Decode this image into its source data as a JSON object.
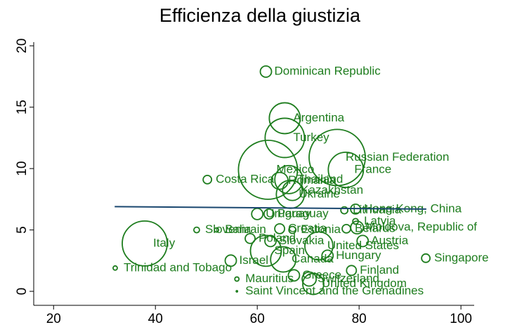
{
  "chart_data": {
    "type": "scatter",
    "title": "Efficienza della giustizia",
    "labels": [
      "Dominican Republic",
      "Argentina",
      "Turkey",
      "Russian Federation",
      "France",
      "Mexico",
      "Costa Rica",
      "Romania",
      "Thailand",
      "Kazakhstan",
      "Ukraine",
      "Hong Kong, China",
      "Lithuania",
      "Uruguay",
      "Paraguay",
      "Latvia",
      "Moldova, Republic of",
      "Belarus",
      "Slovenia",
      "Bahrain",
      "Croatia",
      "Estonia",
      "Italy",
      "Poland",
      "Slovakia",
      "Austria",
      "United States",
      "Singapore",
      "Spain",
      "Hungary",
      "Israel",
      "Canada",
      "Trinidad and Tobago",
      "Finland",
      "Mauritius",
      "Switzerland",
      "Greece",
      "United Kingdom",
      "Saint Vincent and the Grenadines"
    ],
    "x": [
      61.7,
      65.4,
      65.4,
      75.7,
      77.4,
      62.1,
      50.2,
      64.4,
      66.2,
      66.9,
      66.5,
      79.3,
      77.1,
      60.0,
      62.3,
      79.3,
      79.6,
      77.5,
      48.1,
      52.0,
      64.4,
      66.9,
      37.9,
      58.6,
      62.6,
      80.7,
      72.1,
      93.1,
      61.7,
      73.8,
      54.8,
      65.1,
      32.1,
      78.5,
      56.0,
      70.2,
      67.2,
      71.0,
      56.0
    ],
    "values": [
      17.9,
      14.1,
      12.5,
      10.9,
      9.9,
      9.9,
      9.1,
      9.0,
      9.1,
      8.2,
      7.9,
      6.7,
      6.6,
      6.3,
      6.3,
      5.7,
      5.2,
      5.1,
      5.0,
      5.0,
      5.1,
      5.0,
      3.9,
      4.3,
      4.1,
      4.1,
      3.7,
      2.7,
      3.3,
      2.9,
      2.5,
      2.6,
      1.9,
      1.7,
      1.0,
      1.0,
      1.3,
      0.6,
      0.0
    ],
    "sizes": [
      8,
      22,
      28,
      40,
      25,
      42,
      6,
      12,
      20,
      14,
      20,
      7,
      5,
      8,
      7,
      4,
      9,
      6,
      4,
      3,
      7,
      5,
      32,
      7,
      8,
      8,
      20,
      6,
      22,
      8,
      8,
      18,
      3,
      7,
      3,
      10,
      8,
      15,
      1
    ],
    "color": "#1e7d1e",
    "fit_line": {
      "x": [
        32.0,
        93.2
      ],
      "values": [
        6.9,
        6.7
      ],
      "color": "#1a476f"
    },
    "xlim": [
      16.1,
      102.6
    ],
    "xticks": [
      20,
      40,
      60,
      80,
      100
    ],
    "ylim": [
      -1.14,
      20.3
    ],
    "yticks": [
      0,
      5,
      10,
      15,
      20
    ]
  }
}
